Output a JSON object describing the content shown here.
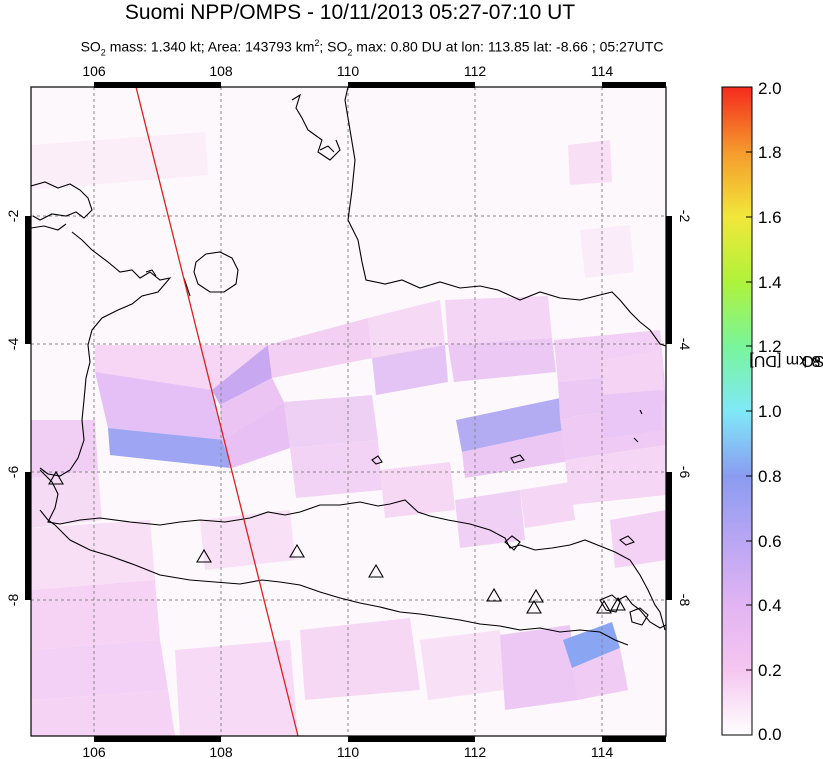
{
  "title": "Suomi NPP/OMPS - 10/11/2013 05:27-07:10 UT",
  "subtitle": {
    "mass_label": "SO",
    "mass_rest": " mass: 1.340 kt; Area: 143793 km",
    "area_rest": "; SO",
    "max_rest": " max: 0.80 DU at lon: 113.85 lat: -8.66 ; 05:27UTC"
  },
  "map": {
    "lon_ticks": [
      "106",
      "108",
      "110",
      "112",
      "114"
    ],
    "lat_ticks_left": [
      "-2",
      "-4",
      "-6",
      "-8"
    ],
    "lat_ticks_right": [
      "-2",
      "-4",
      "-6",
      "-8"
    ],
    "volcano_count": 12,
    "orbit_track_color": "#e0201a",
    "coast_color": "#000000",
    "grid_style": "dashed"
  },
  "colorbar": {
    "label": "SO2 column 8 km [DU]",
    "label_parts": {
      "a": "SO",
      "sub": "2",
      "b": " column 8 km [DU]"
    },
    "ticks": [
      "2.0",
      "1.8",
      "1.6",
      "1.4",
      "1.2",
      "1.0",
      "0.8",
      "0.6",
      "0.4",
      "0.2",
      "0.0"
    ],
    "colors": [
      "#ffffff",
      "#f5c6f0",
      "#d8a8f2",
      "#9aa4f2",
      "#7ee7f7",
      "#7af57f",
      "#e8f23a",
      "#f5b02e",
      "#f54a22"
    ]
  }
}
